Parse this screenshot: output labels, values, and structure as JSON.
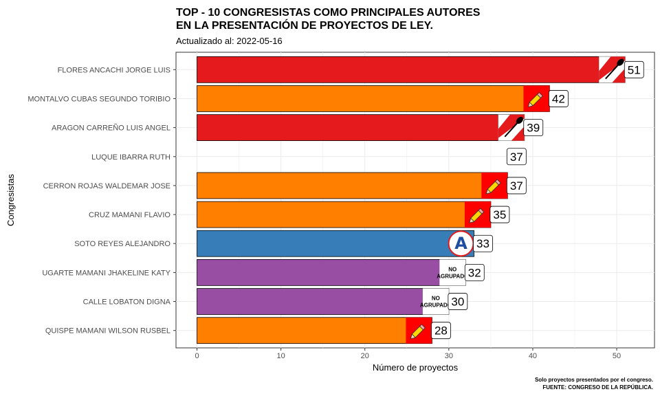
{
  "chart_data": {
    "type": "bar",
    "orientation": "horizontal",
    "title_line1": "TOP - 10 CONGRESISTAS COMO PRINCIPALES AUTORES",
    "title_line2": "EN LA PRESENTACIÓN DE PROYECTOS DE LEY.",
    "subtitle": "Actualizado al: 2022-05-16",
    "xlabel": "Número de proyectos",
    "ylabel": "Congresistas",
    "xlim": [
      -2.5,
      54.5
    ],
    "xticks": [
      0,
      10,
      20,
      30,
      40,
      50
    ],
    "grid": true,
    "caption_line1": "Solo proyectos presentados por el congreso.",
    "caption_line2": "FUENTE: CONGRESO DE LA REPÚBLICA.",
    "colors": {
      "red": "#e41a1c",
      "orange": "#ff7f00",
      "blue": "#377eb8",
      "purple": "#984ea3"
    },
    "bars": [
      {
        "name": "FLORES ANCACHI JORGE LUIS",
        "value": 51,
        "color": "#e41a1c",
        "icon": "shovel-flag-icon"
      },
      {
        "name": "MONTALVO CUBAS SEGUNDO TORIBIO",
        "value": 42,
        "color": "#ff7f00",
        "icon": "pencil-icon"
      },
      {
        "name": "ARAGON CARREÑO LUIS ANGEL",
        "value": 39,
        "color": "#e41a1c",
        "icon": "shovel-flag-icon"
      },
      {
        "name": "LUQUE IBARRA RUTH",
        "value": 37,
        "color": null,
        "icon": null
      },
      {
        "name": "CERRON ROJAS WALDEMAR JOSE",
        "value": 37,
        "color": "#ff7f00",
        "icon": "pencil-icon"
      },
      {
        "name": "CRUZ MAMANI FLAVIO",
        "value": 35,
        "color": "#ff7f00",
        "icon": "pencil-icon"
      },
      {
        "name": "SOTO REYES ALEJANDRO",
        "value": 33,
        "color": "#377eb8",
        "icon": "letter-a-icon"
      },
      {
        "name": "UGARTE MAMANI JHAKELINE KATY",
        "value": 32,
        "color": "#984ea3",
        "icon": "no-agrupado-icon"
      },
      {
        "name": "CALLE LOBATON DIGNA",
        "value": 30,
        "color": "#984ea3",
        "icon": "no-agrupado-icon"
      },
      {
        "name": "QUISPE MAMANI WILSON RUSBEL",
        "value": 28,
        "color": "#ff7f00",
        "icon": "pencil-icon"
      }
    ],
    "no_agrupado_line1": "NO",
    "no_agrupado_line2": "AGRUPADO",
    "letter_a": "A"
  }
}
